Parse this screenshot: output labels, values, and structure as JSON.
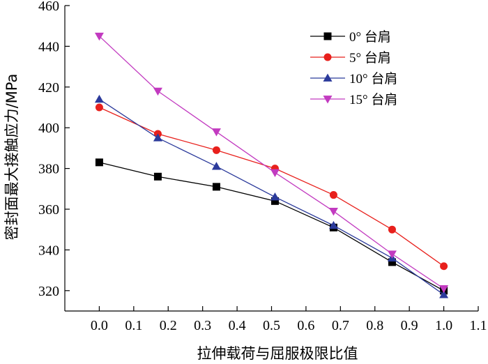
{
  "chart_data": {
    "type": "line",
    "xlabel": "拉伸载荷与屈服极限比值",
    "ylabel": "密封面最大接触应力/MPa",
    "xlim": [
      -0.1,
      1.1
    ],
    "ylim": [
      310,
      460
    ],
    "x_ticks": [
      "0.0",
      "0.1",
      "0.2",
      "0.3",
      "0.4",
      "0.5",
      "0.6",
      "0.7",
      "0.8",
      "0.9",
      "1.0",
      "1.1"
    ],
    "y_ticks": [
      "320",
      "340",
      "360",
      "380",
      "400",
      "420",
      "440",
      "460"
    ],
    "x": [
      0.0,
      0.17,
      0.34,
      0.51,
      0.68,
      0.85,
      1.0
    ],
    "legend_position": "top-right",
    "grid": false,
    "series": [
      {
        "name": "0° 台肩",
        "color": "#000000",
        "marker": "square",
        "values": [
          383,
          376,
          371,
          364,
          351,
          334,
          320
        ]
      },
      {
        "name": "5° 台肩",
        "color": "#e8201c",
        "marker": "circle",
        "values": [
          410,
          397,
          389,
          380,
          367,
          350,
          332
        ]
      },
      {
        "name": "10° 台肩",
        "color": "#2b3a9b",
        "marker": "triangle-up",
        "values": [
          414,
          395,
          381,
          366,
          352,
          336,
          318
        ]
      },
      {
        "name": "15° 台肩",
        "color": "#c23ac0",
        "marker": "triangle-down",
        "values": [
          445,
          418,
          398,
          378,
          359,
          338,
          321
        ]
      }
    ]
  }
}
